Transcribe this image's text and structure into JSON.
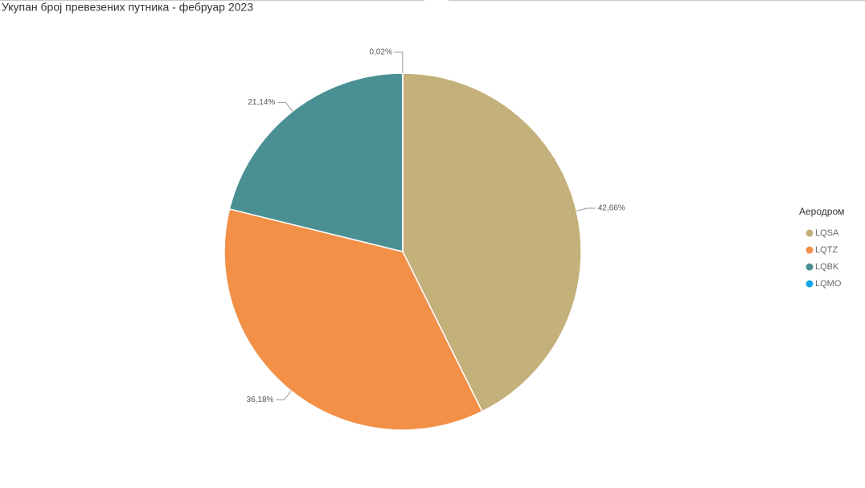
{
  "chart_data": {
    "type": "pie",
    "title": "Укупан број превезених путника - фебруар 2023",
    "legend_title": "Аеродром",
    "legend_position": "right",
    "categories": [
      "LQSA",
      "LQTZ",
      "LQBK",
      "LQMO"
    ],
    "values": [
      42.66,
      36.18,
      21.14,
      0.02
    ],
    "value_labels": [
      "42,66%",
      "36,18%",
      "21,14%",
      "0,02%"
    ],
    "colors": [
      "#c4b07b",
      "#f29048",
      "#4a9093",
      "#15a5e6"
    ]
  }
}
